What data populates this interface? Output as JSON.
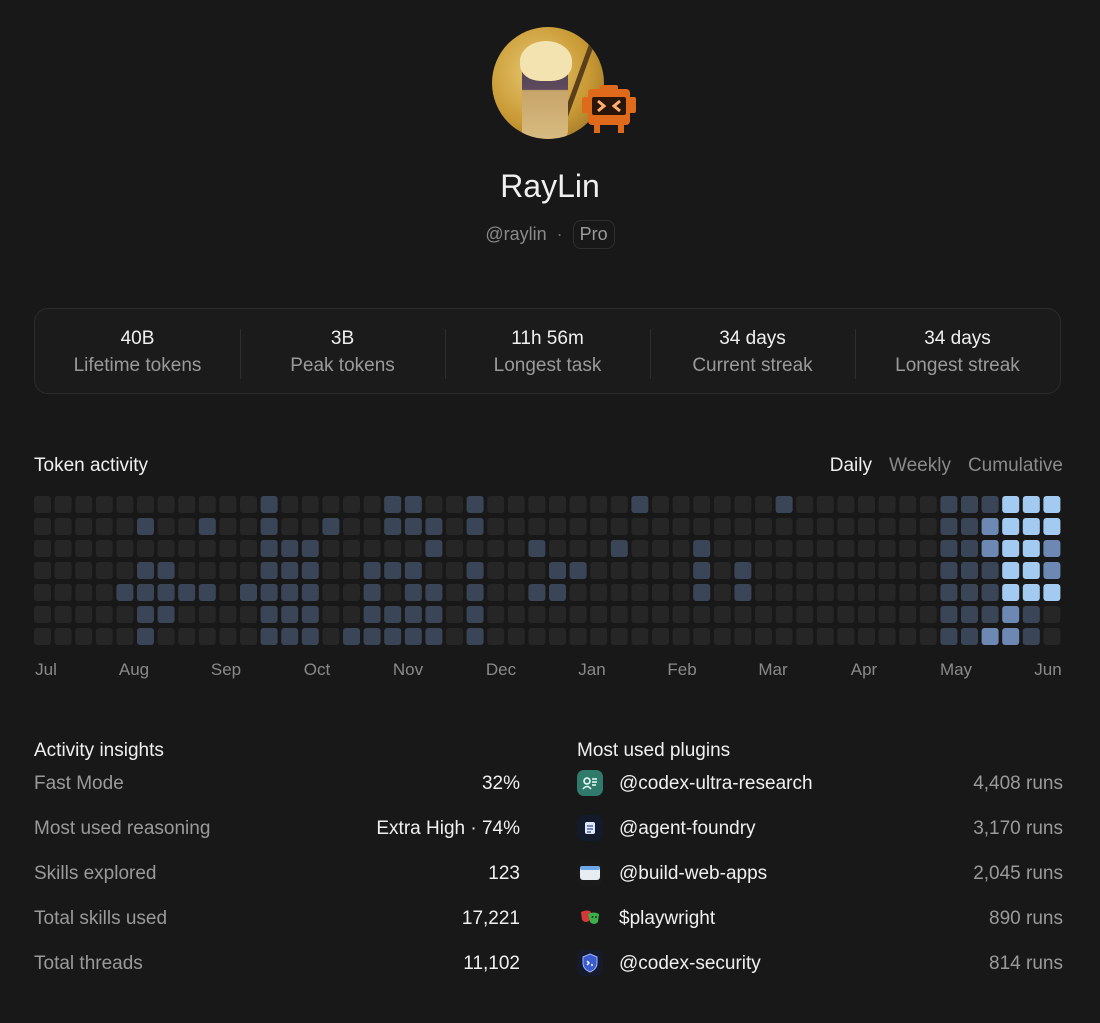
{
  "profile": {
    "name": "RayLin",
    "handle": "@raylin",
    "separator": "·",
    "plan": "Pro"
  },
  "stats": [
    {
      "value": "40B",
      "label": "Lifetime tokens"
    },
    {
      "value": "3B",
      "label": "Peak tokens"
    },
    {
      "value": "11h 56m",
      "label": "Longest task"
    },
    {
      "value": "34 days",
      "label": "Current streak"
    },
    {
      "value": "34 days",
      "label": "Longest streak"
    }
  ],
  "activity": {
    "title": "Token activity",
    "tabs": [
      "Daily",
      "Weekly",
      "Cumulative"
    ],
    "active_tab": "Daily",
    "months": [
      "Jul",
      "Aug",
      "Sep",
      "Oct",
      "Nov",
      "Dec",
      "Jan",
      "Feb",
      "Mar",
      "Apr",
      "May",
      "Jun"
    ],
    "levels": [
      "00000000000100000110010000000100000010000000111333",
      "00000100100100100111010000000000000000000000112333",
      "00000000000111000001000010001000100000000000112332",
      "00000110000111001110010001100000101000000000111332",
      "00001111101111001011010011000000101000000000111333",
      "00000110000111001111010000000000000000000000111210",
      "00000100000111011111010000000000000000000000112210"
    ],
    "level_colors": [
      "#262626",
      "#3b4558",
      "#6d89b3",
      "#a3cbf2"
    ]
  },
  "insights": {
    "title": "Activity insights",
    "rows": [
      {
        "label": "Fast Mode",
        "value": "32%"
      },
      {
        "label": "Most used reasoning",
        "value": "Extra High · 74%"
      },
      {
        "label": "Skills explored",
        "value": "123"
      },
      {
        "label": "Total skills used",
        "value": "17,221"
      },
      {
        "label": "Total threads",
        "value": "11,102"
      }
    ]
  },
  "plugins": {
    "title": "Most used plugins",
    "rows": [
      {
        "name": "@codex-ultra-research",
        "runs": "4,408 runs",
        "icon": "research-icon"
      },
      {
        "name": "@agent-foundry",
        "runs": "3,170 runs",
        "icon": "document-icon"
      },
      {
        "name": "@build-web-apps",
        "runs": "2,045 runs",
        "icon": "browser-window-icon"
      },
      {
        "name": "$playwright",
        "runs": "890 runs",
        "icon": "theater-masks-icon"
      },
      {
        "name": "@codex-security",
        "runs": "814 runs",
        "icon": "shield-icon"
      }
    ]
  }
}
